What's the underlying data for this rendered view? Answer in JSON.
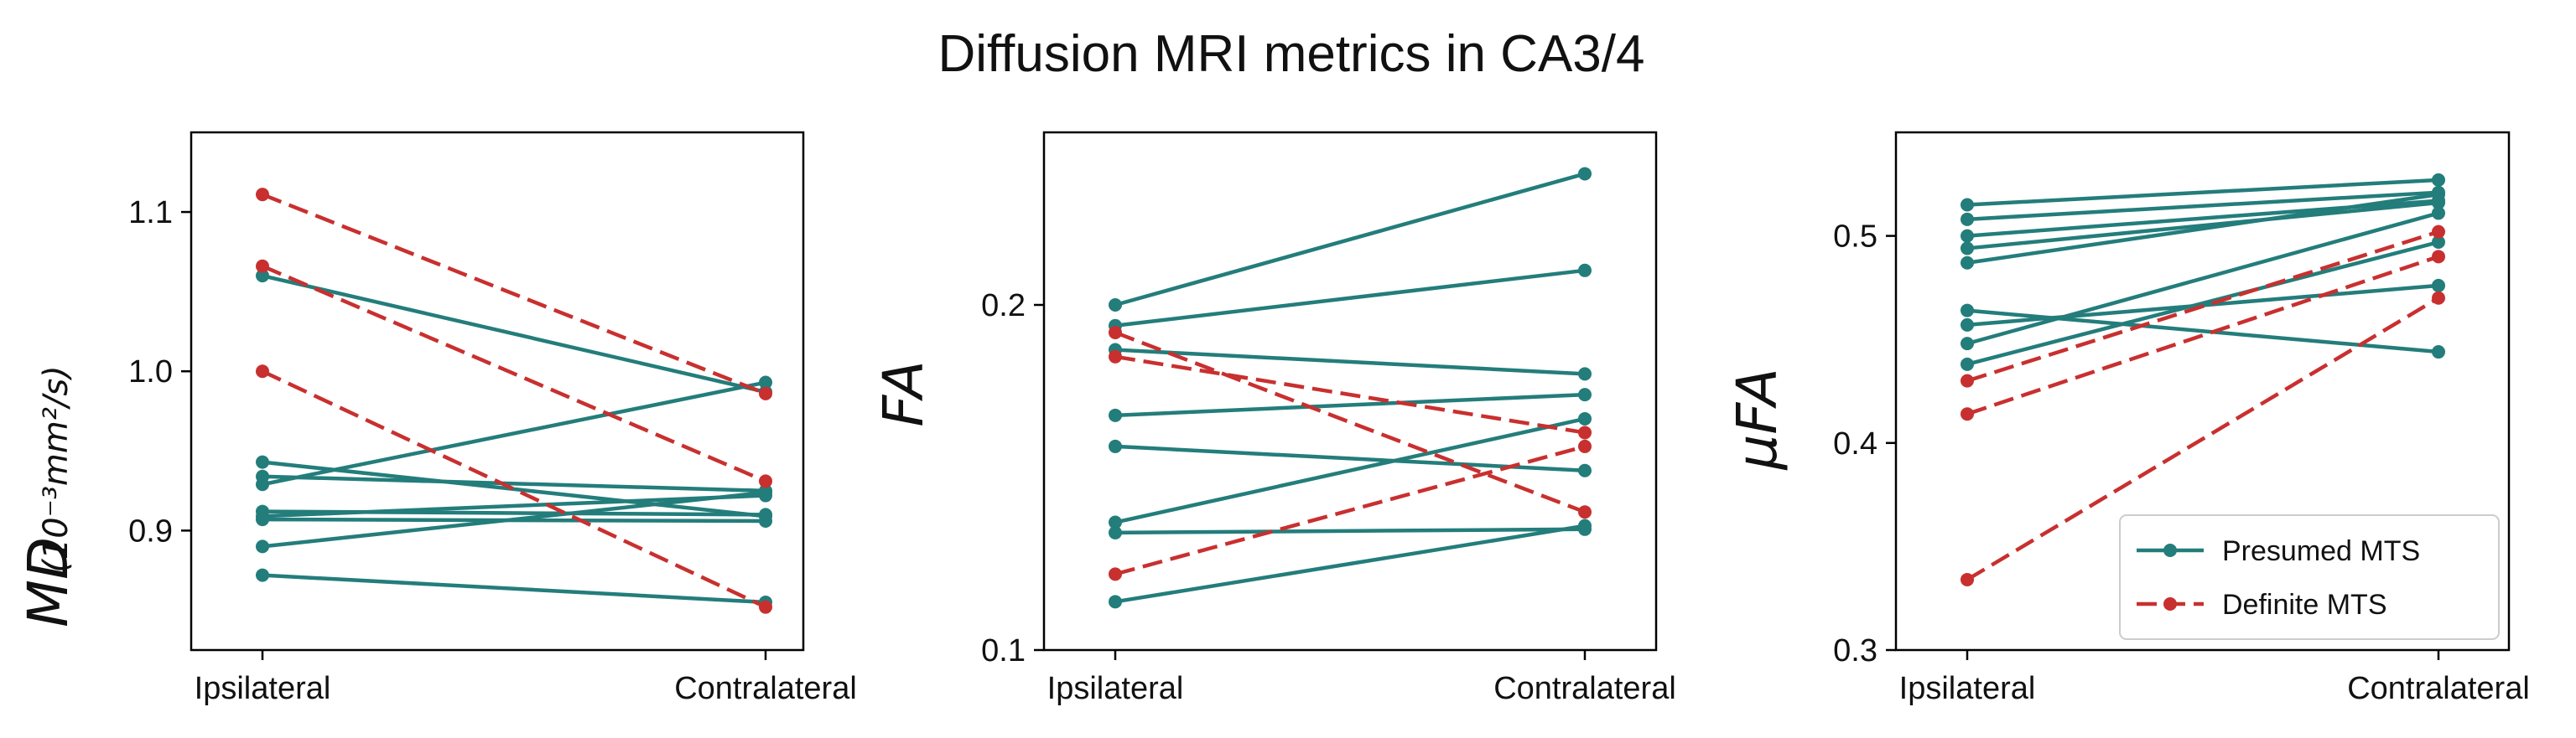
{
  "title": "Diffusion MRI metrics in CA3/4",
  "colors": {
    "presumed": "#237d7b",
    "definite": "#c8302f"
  },
  "legend": {
    "presumed_label": "Presumed MTS",
    "definite_label": "Definite MTS"
  },
  "chart_data": [
    {
      "type": "line",
      "key": "md",
      "ylabel": "MD",
      "ylabel_unit": "(10⁻³mm²/s)",
      "categories": [
        "Ipsilateral",
        "Contralateral"
      ],
      "ylim": [
        0.825,
        1.15
      ],
      "yticks": [
        0.9,
        1.0,
        1.1
      ],
      "ytick_labels": [
        "0.9",
        "1.0",
        "1.1"
      ],
      "series": [
        {
          "group": "presumed",
          "values": [
            1.06,
            0.987
          ]
        },
        {
          "group": "presumed",
          "values": [
            0.943,
            0.909
          ]
        },
        {
          "group": "presumed",
          "values": [
            0.934,
            0.925
          ]
        },
        {
          "group": "presumed",
          "values": [
            0.929,
            0.993
          ]
        },
        {
          "group": "presumed",
          "values": [
            0.912,
            0.91
          ]
        },
        {
          "group": "presumed",
          "values": [
            0.909,
            0.922
          ]
        },
        {
          "group": "presumed",
          "values": [
            0.907,
            0.906
          ]
        },
        {
          "group": "presumed",
          "values": [
            0.89,
            0.924
          ]
        },
        {
          "group": "presumed",
          "values": [
            0.872,
            0.855
          ]
        },
        {
          "group": "definite",
          "values": [
            1.111,
            0.986
          ]
        },
        {
          "group": "definite",
          "values": [
            1.066,
            0.931
          ]
        },
        {
          "group": "definite",
          "values": [
            1.0,
            0.852
          ]
        }
      ]
    },
    {
      "type": "line",
      "key": "fa",
      "ylabel": "FA",
      "categories": [
        "Ipsilateral",
        "Contralateral"
      ],
      "ylim": [
        0.1,
        0.25
      ],
      "yticks": [
        0.1,
        0.2
      ],
      "ytick_labels": [
        "0.1",
        "0.2"
      ],
      "series": [
        {
          "group": "presumed",
          "values": [
            0.2,
            0.238
          ]
        },
        {
          "group": "presumed",
          "values": [
            0.194,
            0.21
          ]
        },
        {
          "group": "presumed",
          "values": [
            0.187,
            0.18
          ]
        },
        {
          "group": "presumed",
          "values": [
            0.168,
            0.174
          ]
        },
        {
          "group": "presumed",
          "values": [
            0.159,
            0.152
          ]
        },
        {
          "group": "presumed",
          "values": [
            0.137,
            0.167
          ]
        },
        {
          "group": "presumed",
          "values": [
            0.134,
            0.135
          ]
        },
        {
          "group": "presumed",
          "values": [
            0.114,
            0.136
          ]
        },
        {
          "group": "definite",
          "values": [
            0.192,
            0.14
          ]
        },
        {
          "group": "definite",
          "values": [
            0.185,
            0.163
          ]
        },
        {
          "group": "definite",
          "values": [
            0.122,
            0.159
          ]
        }
      ]
    },
    {
      "type": "line",
      "key": "ufa",
      "ylabel": "μFA",
      "categories": [
        "Ipsilateral",
        "Contralateral"
      ],
      "ylim": [
        0.3,
        0.55
      ],
      "yticks": [
        0.3,
        0.4,
        0.5
      ],
      "ytick_labels": [
        "0.3",
        "0.4",
        "0.5"
      ],
      "legend_position": "lower-right",
      "series": [
        {
          "group": "presumed",
          "values": [
            0.515,
            0.527
          ]
        },
        {
          "group": "presumed",
          "values": [
            0.508,
            0.521
          ]
        },
        {
          "group": "presumed",
          "values": [
            0.5,
            0.517
          ]
        },
        {
          "group": "presumed",
          "values": [
            0.494,
            0.516
          ]
        },
        {
          "group": "presumed",
          "values": [
            0.487,
            0.52
          ]
        },
        {
          "group": "presumed",
          "values": [
            0.464,
            0.444
          ]
        },
        {
          "group": "presumed",
          "values": [
            0.457,
            0.476
          ]
        },
        {
          "group": "presumed",
          "values": [
            0.448,
            0.511
          ]
        },
        {
          "group": "presumed",
          "values": [
            0.438,
            0.497
          ]
        },
        {
          "group": "definite",
          "values": [
            0.43,
            0.502
          ]
        },
        {
          "group": "definite",
          "values": [
            0.414,
            0.49
          ]
        },
        {
          "group": "definite",
          "values": [
            0.334,
            0.47
          ]
        }
      ]
    }
  ]
}
